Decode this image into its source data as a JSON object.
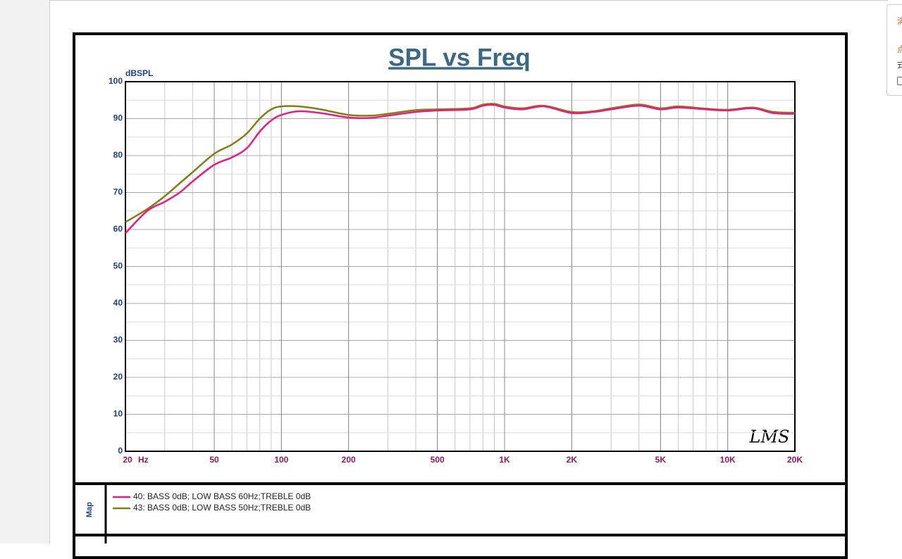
{
  "chart_data": {
    "type": "line",
    "title": "SPL vs Freq",
    "y_label": "dBSPL",
    "x_unit": "Hz",
    "watermark": "LMS",
    "x": [
      20,
      25,
      30,
      35,
      40,
      50,
      60,
      70,
      80,
      90,
      100,
      120,
      150,
      200,
      250,
      300,
      400,
      500,
      700,
      800,
      900,
      1000,
      1200,
      1500,
      2000,
      2500,
      3000,
      4000,
      5000,
      6000,
      8000,
      10000,
      13000,
      16000,
      20000
    ],
    "series": [
      {
        "name": "40: BASS 0dB; LOW BASS 60Hz;TREBLE 0dB",
        "color": "#ec1a82",
        "values": [
          59,
          65,
          67.5,
          70,
          73,
          77.5,
          79.5,
          82,
          86.5,
          89.5,
          91,
          92,
          91.5,
          90.3,
          90.2,
          90.8,
          91.8,
          92.2,
          92.5,
          93.5,
          93.7,
          93,
          92.5,
          93.3,
          91.5,
          91.8,
          92.5,
          93.5,
          92.5,
          93,
          92.5,
          92.2,
          92.8,
          91.5,
          91.3
        ]
      },
      {
        "name": "43: BASS 0dB; LOW BASS 50Hz;TREBLE 0dB",
        "color": "#7f7f12",
        "values": [
          62,
          65.5,
          69,
          72.5,
          75.5,
          80.5,
          83,
          86,
          90,
          92.5,
          93.3,
          93.3,
          92.5,
          91,
          90.8,
          91.3,
          92.3,
          92.5,
          92.8,
          93.8,
          94,
          93.3,
          92.8,
          93.5,
          91.8,
          92,
          92.8,
          93.8,
          92.8,
          93.3,
          92.7,
          92.4,
          93,
          91.8,
          91.6
        ]
      }
    ],
    "xlim": [
      20,
      20000
    ],
    "ylim": [
      0,
      100
    ],
    "xscale": "log",
    "xticks": [
      20,
      50,
      100,
      200,
      500,
      {
        "value": 1000,
        "label": "1K"
      },
      {
        "value": 2000,
        "label": "2K"
      },
      {
        "value": 5000,
        "label": "5K"
      },
      {
        "value": 10000,
        "label": "10K"
      },
      {
        "value": 20000,
        "label": "20K"
      }
    ],
    "yticks": [
      0,
      10,
      20,
      30,
      40,
      50,
      60,
      70,
      80,
      90,
      100
    ],
    "grid": true,
    "legend_title": "Map"
  },
  "sidebar": {
    "items": [
      "清",
      "点",
      "式"
    ]
  }
}
